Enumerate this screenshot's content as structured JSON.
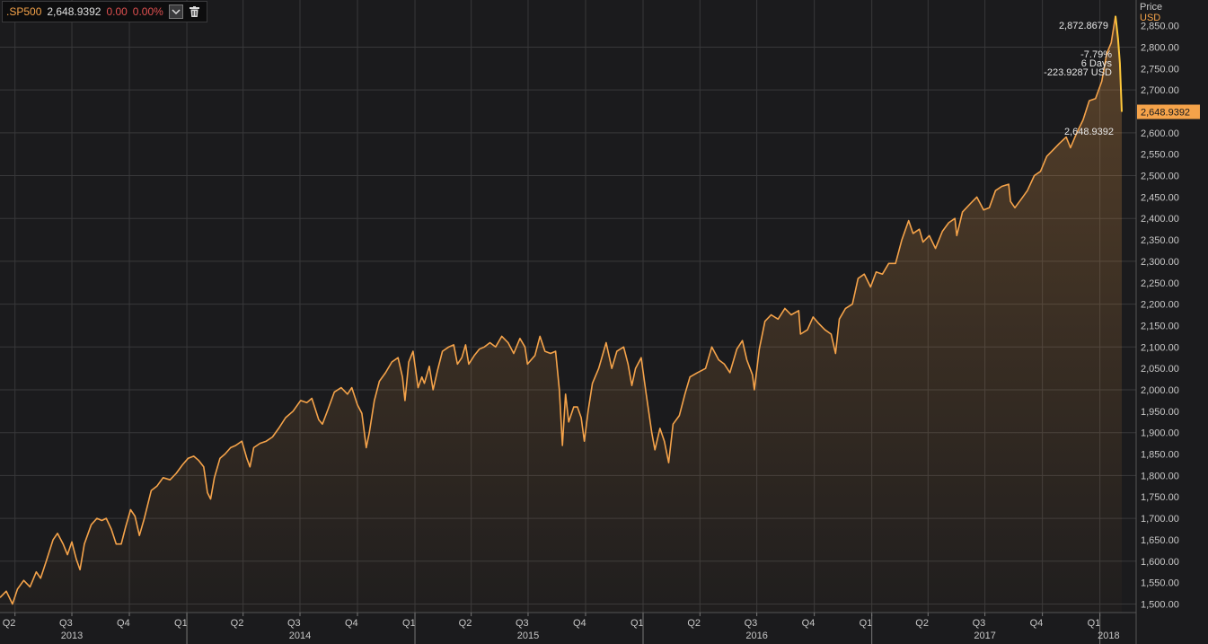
{
  "legend": {
    "symbol": ".SP500",
    "value": "2,648.9392",
    "change": "0.00",
    "change_pct": "0.00%",
    "icons": [
      "chevron-down-icon",
      "trash-icon"
    ]
  },
  "price_axis_title": {
    "line1": "Price",
    "line2": "USD"
  },
  "annotations": {
    "peak_label": "2,872.8679",
    "change_pct": "-7.79%",
    "period": "6 Days",
    "change_abs": "-223.9287 USD",
    "last_label": "2,648.9392"
  },
  "last_price_tag": "2,648.9392",
  "colors": {
    "line": "#f5a34a",
    "accent": "#ffc83a",
    "background": "#1b1b1d",
    "grid": "#3a3a3c",
    "negative": "#e05050"
  },
  "chart_data": {
    "type": "area",
    "title": "",
    "xlabel": "",
    "ylabel": "Price USD",
    "ylim": [
      1480,
      2910
    ],
    "yticks": [
      1500,
      1550,
      1600,
      1650,
      1700,
      1750,
      1800,
      1850,
      1900,
      1950,
      2000,
      2050,
      2100,
      2150,
      2200,
      2250,
      2300,
      2350,
      2400,
      2450,
      2500,
      2550,
      2600,
      2650,
      2700,
      2750,
      2800,
      2850
    ],
    "ytick_labels": [
      "1,500.00",
      "1,550.00",
      "1,600.00",
      "1,650.00",
      "1,700.00",
      "1,750.00",
      "1,800.00",
      "1,850.00",
      "1,900.00",
      "1,950.00",
      "2,000.00",
      "2,050.00",
      "2,100.00",
      "2,150.00",
      "2,200.00",
      "2,250.00",
      "2,300.00",
      "2,350.00",
      "2,400.00",
      "2,450.00",
      "2,500.00",
      "2,550.00",
      "2,600.00",
      "2,650.00",
      "2,700.00",
      "2,750.00",
      "2,800.00",
      "2,850.00"
    ],
    "grid": true,
    "x_start": "2013-03-08",
    "x_end": "2018-02-28",
    "quarter_ticks": [
      {
        "date": "2013-04-01",
        "label": "Q2"
      },
      {
        "date": "2013-07-01",
        "label": "Q3"
      },
      {
        "date": "2013-10-01",
        "label": "Q4"
      },
      {
        "date": "2014-01-01",
        "label": "Q1"
      },
      {
        "date": "2014-04-01",
        "label": "Q2"
      },
      {
        "date": "2014-07-01",
        "label": "Q3"
      },
      {
        "date": "2014-10-01",
        "label": "Q4"
      },
      {
        "date": "2015-01-01",
        "label": "Q1"
      },
      {
        "date": "2015-04-01",
        "label": "Q2"
      },
      {
        "date": "2015-07-01",
        "label": "Q3"
      },
      {
        "date": "2015-10-01",
        "label": "Q4"
      },
      {
        "date": "2016-01-01",
        "label": "Q1"
      },
      {
        "date": "2016-04-01",
        "label": "Q2"
      },
      {
        "date": "2016-07-01",
        "label": "Q3"
      },
      {
        "date": "2016-10-01",
        "label": "Q4"
      },
      {
        "date": "2017-01-01",
        "label": "Q1"
      },
      {
        "date": "2017-04-01",
        "label": "Q2"
      },
      {
        "date": "2017-07-01",
        "label": "Q3"
      },
      {
        "date": "2017-10-01",
        "label": "Q4"
      },
      {
        "date": "2018-01-01",
        "label": "Q1"
      }
    ],
    "year_labels": [
      {
        "date": "2013-07-01",
        "label": "2013"
      },
      {
        "date": "2014-07-01",
        "label": "2014"
      },
      {
        "date": "2015-07-01",
        "label": "2015"
      },
      {
        "date": "2016-07-01",
        "label": "2016"
      },
      {
        "date": "2017-07-01",
        "label": "2017"
      },
      {
        "date": "2018-01-15",
        "label": "2018"
      }
    ],
    "year_dividers": [
      "2014-01-01",
      "2015-01-01",
      "2016-01-01",
      "2017-01-01",
      "2018-01-01"
    ],
    "series": [
      {
        "name": ".SP500",
        "points": [
          [
            "2013-03-08",
            1515
          ],
          [
            "2013-03-18",
            1530
          ],
          [
            "2013-03-28",
            1500
          ],
          [
            "2013-04-05",
            1535
          ],
          [
            "2013-04-15",
            1555
          ],
          [
            "2013-04-25",
            1540
          ],
          [
            "2013-05-05",
            1575
          ],
          [
            "2013-05-12",
            1560
          ],
          [
            "2013-05-21",
            1600
          ],
          [
            "2013-06-01",
            1650
          ],
          [
            "2013-06-08",
            1665
          ],
          [
            "2013-06-17",
            1640
          ],
          [
            "2013-06-24",
            1615
          ],
          [
            "2013-07-01",
            1645
          ],
          [
            "2013-07-08",
            1605
          ],
          [
            "2013-07-14",
            1580
          ],
          [
            "2013-07-21",
            1640
          ],
          [
            "2013-08-01",
            1685
          ],
          [
            "2013-08-10",
            1700
          ],
          [
            "2013-08-18",
            1695
          ],
          [
            "2013-08-25",
            1700
          ],
          [
            "2013-09-02",
            1675
          ],
          [
            "2013-09-10",
            1640
          ],
          [
            "2013-09-18",
            1640
          ],
          [
            "2013-09-25",
            1680
          ],
          [
            "2013-10-03",
            1720
          ],
          [
            "2013-10-10",
            1705
          ],
          [
            "2013-10-17",
            1660
          ],
          [
            "2013-10-25",
            1700
          ],
          [
            "2013-11-05",
            1765
          ],
          [
            "2013-11-14",
            1775
          ],
          [
            "2013-11-24",
            1795
          ],
          [
            "2013-12-05",
            1790
          ],
          [
            "2013-12-15",
            1805
          ],
          [
            "2013-12-25",
            1825
          ],
          [
            "2014-01-03",
            1840
          ],
          [
            "2014-01-12",
            1845
          ],
          [
            "2014-01-20",
            1835
          ],
          [
            "2014-01-28",
            1820
          ],
          [
            "2014-02-03",
            1760
          ],
          [
            "2014-02-08",
            1745
          ],
          [
            "2014-02-14",
            1795
          ],
          [
            "2014-02-23",
            1840
          ],
          [
            "2014-03-03",
            1850
          ],
          [
            "2014-03-12",
            1865
          ],
          [
            "2014-03-20",
            1870
          ],
          [
            "2014-03-30",
            1880
          ],
          [
            "2014-04-07",
            1840
          ],
          [
            "2014-04-12",
            1820
          ],
          [
            "2014-04-18",
            1865
          ],
          [
            "2014-04-28",
            1875
          ],
          [
            "2014-05-08",
            1880
          ],
          [
            "2014-05-18",
            1890
          ],
          [
            "2014-05-28",
            1910
          ],
          [
            "2014-06-08",
            1935
          ],
          [
            "2014-06-20",
            1950
          ],
          [
            "2014-07-02",
            1975
          ],
          [
            "2014-07-12",
            1970
          ],
          [
            "2014-07-20",
            1980
          ],
          [
            "2014-07-31",
            1930
          ],
          [
            "2014-08-06",
            1920
          ],
          [
            "2014-08-15",
            1955
          ],
          [
            "2014-08-25",
            1995
          ],
          [
            "2014-09-05",
            2005
          ],
          [
            "2014-09-15",
            1990
          ],
          [
            "2014-09-22",
            2005
          ],
          [
            "2014-10-01",
            1965
          ],
          [
            "2014-10-08",
            1945
          ],
          [
            "2014-10-15",
            1865
          ],
          [
            "2014-10-20",
            1900
          ],
          [
            "2014-10-28",
            1975
          ],
          [
            "2014-11-05",
            2020
          ],
          [
            "2014-11-15",
            2040
          ],
          [
            "2014-11-25",
            2065
          ],
          [
            "2014-12-05",
            2075
          ],
          [
            "2014-12-12",
            2030
          ],
          [
            "2014-12-16",
            1975
          ],
          [
            "2014-12-22",
            2065
          ],
          [
            "2014-12-29",
            2090
          ],
          [
            "2015-01-06",
            2005
          ],
          [
            "2015-01-12",
            2030
          ],
          [
            "2015-01-16",
            2015
          ],
          [
            "2015-01-24",
            2055
          ],
          [
            "2015-01-30",
            2000
          ],
          [
            "2015-02-06",
            2045
          ],
          [
            "2015-02-14",
            2090
          ],
          [
            "2015-02-24",
            2100
          ],
          [
            "2015-03-04",
            2105
          ],
          [
            "2015-03-10",
            2060
          ],
          [
            "2015-03-17",
            2075
          ],
          [
            "2015-03-23",
            2105
          ],
          [
            "2015-03-28",
            2060
          ],
          [
            "2015-04-06",
            2080
          ],
          [
            "2015-04-14",
            2095
          ],
          [
            "2015-04-22",
            2100
          ],
          [
            "2015-05-01",
            2110
          ],
          [
            "2015-05-10",
            2100
          ],
          [
            "2015-05-20",
            2125
          ],
          [
            "2015-05-30",
            2110
          ],
          [
            "2015-06-08",
            2085
          ],
          [
            "2015-06-18",
            2120
          ],
          [
            "2015-06-26",
            2100
          ],
          [
            "2015-06-30",
            2060
          ],
          [
            "2015-07-06",
            2070
          ],
          [
            "2015-07-12",
            2080
          ],
          [
            "2015-07-20",
            2125
          ],
          [
            "2015-07-28",
            2090
          ],
          [
            "2015-08-06",
            2085
          ],
          [
            "2015-08-14",
            2090
          ],
          [
            "2015-08-20",
            2000
          ],
          [
            "2015-08-25",
            1870
          ],
          [
            "2015-08-30",
            1990
          ],
          [
            "2015-09-04",
            1925
          ],
          [
            "2015-09-12",
            1960
          ],
          [
            "2015-09-18",
            1960
          ],
          [
            "2015-09-24",
            1935
          ],
          [
            "2015-09-29",
            1880
          ],
          [
            "2015-10-05",
            1950
          ],
          [
            "2015-10-12",
            2015
          ],
          [
            "2015-10-22",
            2050
          ],
          [
            "2015-11-03",
            2110
          ],
          [
            "2015-11-12",
            2050
          ],
          [
            "2015-11-20",
            2090
          ],
          [
            "2015-12-01",
            2100
          ],
          [
            "2015-12-08",
            2060
          ],
          [
            "2015-12-14",
            2010
          ],
          [
            "2015-12-20",
            2050
          ],
          [
            "2015-12-29",
            2075
          ],
          [
            "2016-01-06",
            1990
          ],
          [
            "2016-01-15",
            1900
          ],
          [
            "2016-01-20",
            1860
          ],
          [
            "2016-01-28",
            1910
          ],
          [
            "2016-02-04",
            1880
          ],
          [
            "2016-02-11",
            1830
          ],
          [
            "2016-02-18",
            1920
          ],
          [
            "2016-02-28",
            1940
          ],
          [
            "2016-03-08",
            1990
          ],
          [
            "2016-03-16",
            2030
          ],
          [
            "2016-03-28",
            2040
          ],
          [
            "2016-04-10",
            2050
          ],
          [
            "2016-04-20",
            2100
          ],
          [
            "2016-05-01",
            2070
          ],
          [
            "2016-05-10",
            2060
          ],
          [
            "2016-05-19",
            2040
          ],
          [
            "2016-05-30",
            2095
          ],
          [
            "2016-06-08",
            2115
          ],
          [
            "2016-06-15",
            2070
          ],
          [
            "2016-06-24",
            2035
          ],
          [
            "2016-06-27",
            2000
          ],
          [
            "2016-07-05",
            2095
          ],
          [
            "2016-07-14",
            2160
          ],
          [
            "2016-07-24",
            2175
          ],
          [
            "2016-08-04",
            2165
          ],
          [
            "2016-08-15",
            2190
          ],
          [
            "2016-08-25",
            2175
          ],
          [
            "2016-09-06",
            2185
          ],
          [
            "2016-09-09",
            2130
          ],
          [
            "2016-09-20",
            2140
          ],
          [
            "2016-09-29",
            2170
          ],
          [
            "2016-10-08",
            2155
          ],
          [
            "2016-10-18",
            2140
          ],
          [
            "2016-10-28",
            2130
          ],
          [
            "2016-11-04",
            2085
          ],
          [
            "2016-11-10",
            2165
          ],
          [
            "2016-11-20",
            2190
          ],
          [
            "2016-12-01",
            2200
          ],
          [
            "2016-12-10",
            2260
          ],
          [
            "2016-12-20",
            2270
          ],
          [
            "2016-12-30",
            2240
          ],
          [
            "2017-01-08",
            2275
          ],
          [
            "2017-01-18",
            2270
          ],
          [
            "2017-01-28",
            2295
          ],
          [
            "2017-02-08",
            2295
          ],
          [
            "2017-02-18",
            2350
          ],
          [
            "2017-03-01",
            2395
          ],
          [
            "2017-03-08",
            2365
          ],
          [
            "2017-03-18",
            2375
          ],
          [
            "2017-03-24",
            2345
          ],
          [
            "2017-04-03",
            2360
          ],
          [
            "2017-04-13",
            2330
          ],
          [
            "2017-04-24",
            2370
          ],
          [
            "2017-05-04",
            2390
          ],
          [
            "2017-05-14",
            2400
          ],
          [
            "2017-05-17",
            2360
          ],
          [
            "2017-05-26",
            2415
          ],
          [
            "2017-06-08",
            2435
          ],
          [
            "2017-06-18",
            2450
          ],
          [
            "2017-06-29",
            2420
          ],
          [
            "2017-07-08",
            2425
          ],
          [
            "2017-07-18",
            2465
          ],
          [
            "2017-07-28",
            2475
          ],
          [
            "2017-08-08",
            2480
          ],
          [
            "2017-08-11",
            2440
          ],
          [
            "2017-08-18",
            2425
          ],
          [
            "2017-08-28",
            2445
          ],
          [
            "2017-09-07",
            2465
          ],
          [
            "2017-09-18",
            2500
          ],
          [
            "2017-09-28",
            2510
          ],
          [
            "2017-10-08",
            2545
          ],
          [
            "2017-10-18",
            2560
          ],
          [
            "2017-10-28",
            2575
          ],
          [
            "2017-11-08",
            2590
          ],
          [
            "2017-11-15",
            2565
          ],
          [
            "2017-11-25",
            2600
          ],
          [
            "2017-12-05",
            2630
          ],
          [
            "2017-12-15",
            2675
          ],
          [
            "2017-12-25",
            2680
          ],
          [
            "2018-01-04",
            2720
          ],
          [
            "2018-01-12",
            2785
          ],
          [
            "2018-01-19",
            2810
          ],
          [
            "2018-01-26",
            2872.8679
          ],
          [
            "2018-01-30",
            2820
          ],
          [
            "2018-02-02",
            2762
          ],
          [
            "2018-02-05",
            2648.9392
          ]
        ]
      }
    ]
  }
}
